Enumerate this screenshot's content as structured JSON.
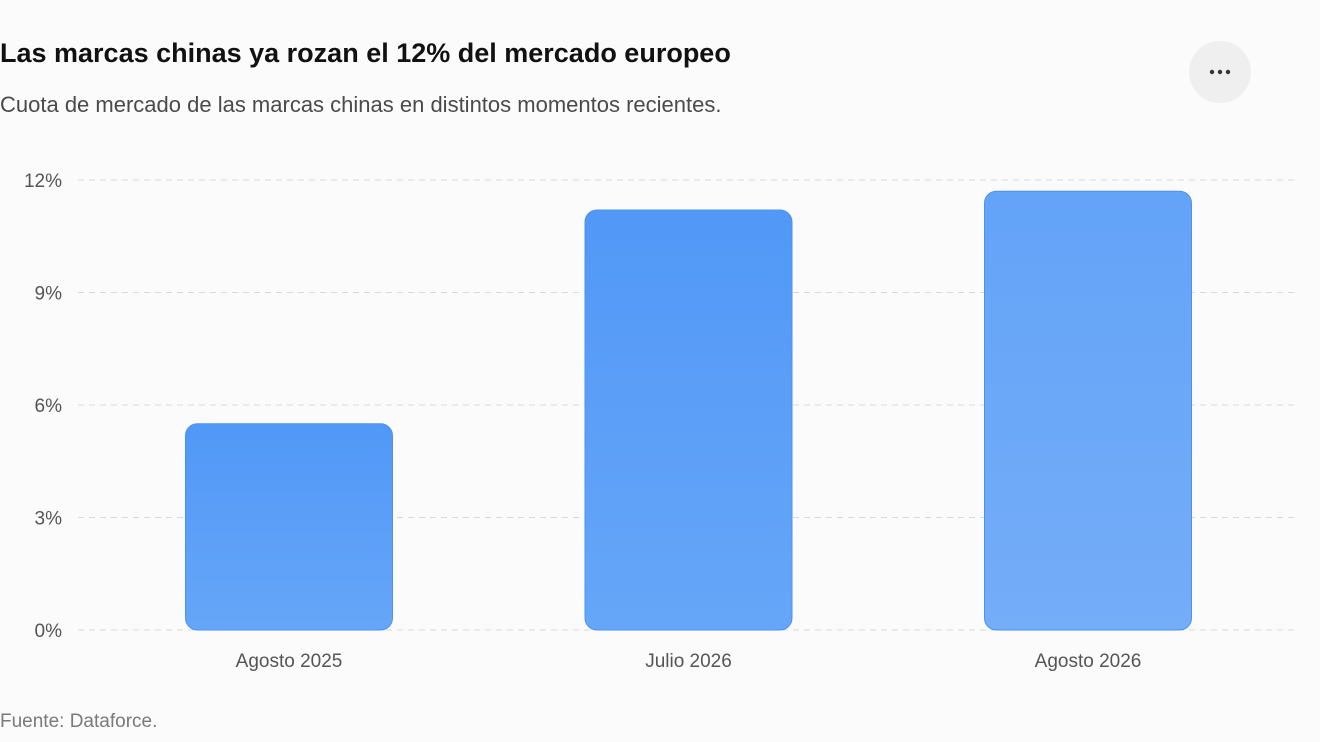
{
  "header": {
    "title": "Las marcas chinas ya rozan el 12% del mercado europeo",
    "subtitle": "Cuota de mercado de las marcas chinas en distintos momentos recientes."
  },
  "menu": {
    "icon": "more-horizontal-icon"
  },
  "footer": {
    "source": "Fuente: Dataforce."
  },
  "colors": {
    "bar_top": "#5198f7",
    "bar_bottom": "#66a6f8",
    "bar_last_top": "#63a3f8",
    "bar_last_bottom": "#74adf8",
    "grid": "#d8d8d8",
    "axis_text": "#555555"
  },
  "chart_data": {
    "type": "bar",
    "title": "Las marcas chinas ya rozan el 12% del mercado europeo",
    "subtitle": "Cuota de mercado de las marcas chinas en distintos momentos recientes.",
    "categories": [
      "Agosto 2025",
      "Julio 2026",
      "Agosto 2026"
    ],
    "values": [
      5.5,
      11.2,
      11.7
    ],
    "unit": "%",
    "ylim": [
      0,
      12
    ],
    "yticks": [
      0,
      3,
      6,
      9,
      12
    ],
    "ytick_labels": [
      "0%",
      "3%",
      "6%",
      "9%",
      "12%"
    ],
    "grid": true,
    "legend": "none",
    "xlabel": "",
    "ylabel": ""
  }
}
